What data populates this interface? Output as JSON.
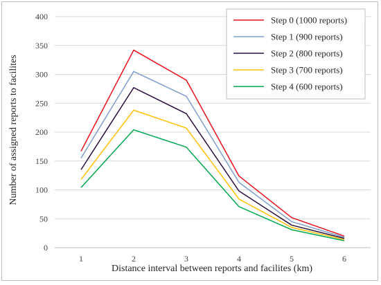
{
  "chart_data": {
    "type": "line",
    "title": "",
    "xlabel": "Distance interval between reports and facilites (km)",
    "ylabel": "Number of assigned reports to facilites",
    "x": [
      1,
      2,
      3,
      4,
      5,
      6
    ],
    "ylim": [
      0,
      400
    ],
    "yticks": [
      0,
      50,
      100,
      150,
      200,
      250,
      300,
      350,
      400
    ],
    "grid": "horizontal",
    "legend_position": "top-right",
    "series": [
      {
        "name": "Step 0 (1000 reports)",
        "color": "#e8101a",
        "values": [
          167,
          342,
          290,
          124,
          52,
          20
        ]
      },
      {
        "name": "Step 1 (900 reports)",
        "color": "#7f9dcc",
        "values": [
          155,
          305,
          262,
          113,
          45,
          18
        ]
      },
      {
        "name": "Step 2 (800 reports)",
        "color": "#2a1040",
        "values": [
          135,
          277,
          232,
          98,
          39,
          16
        ]
      },
      {
        "name": "Step 3 (700 reports)",
        "color": "#ffc000",
        "values": [
          118,
          238,
          207,
          84,
          35,
          14
        ]
      },
      {
        "name": "Step 4 (600 reports)",
        "color": "#00a650",
        "values": [
          104,
          204,
          174,
          71,
          31,
          12
        ]
      }
    ]
  }
}
